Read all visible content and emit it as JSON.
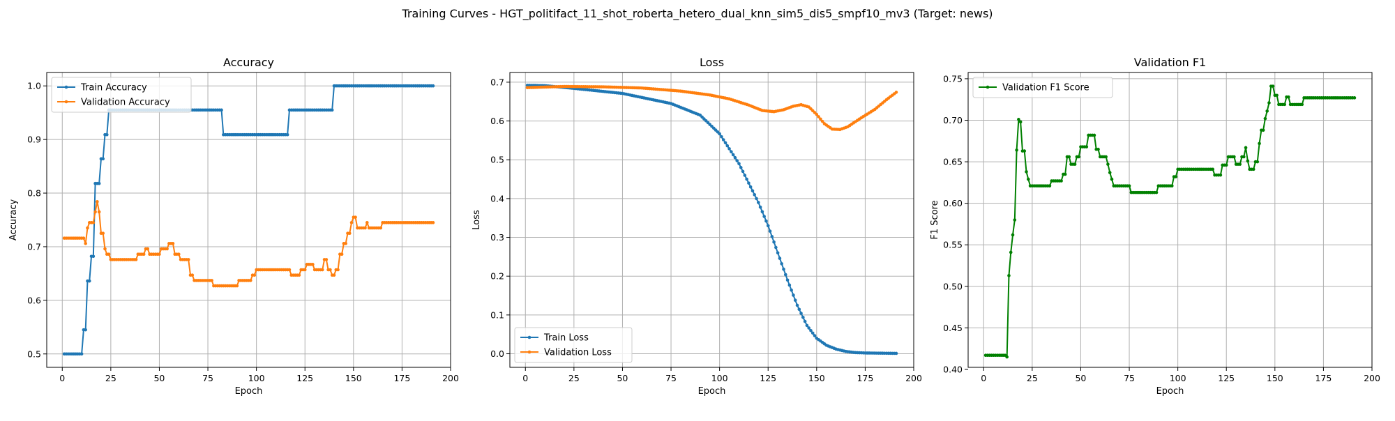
{
  "figure": {
    "suptitle": "Training Curves - HGT_politifact_11_shot_roberta_hetero_dual_knn_sim5_dis5_smpf10_mv3 (Target: news)"
  },
  "colors": {
    "train": "#1f77b4",
    "validation": "#ff7f0e",
    "f1": "#008000",
    "grid": "#b0b0b0"
  },
  "chart_data": [
    {
      "type": "line",
      "title": "Accuracy",
      "xlabel": "Epoch",
      "ylabel": "Accuracy",
      "xlim": [
        -8,
        200
      ],
      "ylim": [
        0.475,
        1.025
      ],
      "xticks": [
        0,
        25,
        50,
        75,
        100,
        125,
        150,
        175,
        200
      ],
      "yticks": [
        0.5,
        0.6,
        0.7,
        0.8,
        0.9,
        1.0
      ],
      "ytick_labels": [
        "0.5",
        "0.6",
        "0.7",
        "0.8",
        "0.9",
        "1.0"
      ],
      "grid": true,
      "legend": "upper-left",
      "x_range": [
        1,
        191
      ],
      "series": [
        {
          "name": "Train Accuracy",
          "color_key": "train",
          "breakpoints": [
            [
              1,
              0.5
            ],
            [
              10,
              0.5
            ],
            [
              11,
              0.545
            ],
            [
              13,
              0.636
            ],
            [
              15,
              0.682
            ],
            [
              17,
              0.818
            ],
            [
              20,
              0.864
            ],
            [
              22,
              0.909
            ],
            [
              24,
              0.955
            ],
            [
              82,
              0.955
            ],
            [
              83,
              0.909
            ],
            [
              116,
              0.909
            ],
            [
              117,
              0.955
            ],
            [
              139,
              0.955
            ],
            [
              140,
              1.0
            ],
            [
              191,
              1.0
            ]
          ],
          "step": true
        },
        {
          "name": "Validation Accuracy",
          "color_key": "validation",
          "breakpoints": [
            [
              1,
              0.716
            ],
            [
              11,
              0.716
            ],
            [
              12,
              0.706
            ],
            [
              13,
              0.735
            ],
            [
              14,
              0.745
            ],
            [
              17,
              0.765
            ],
            [
              18,
              0.784
            ],
            [
              19,
              0.765
            ],
            [
              20,
              0.725
            ],
            [
              22,
              0.696
            ],
            [
              23,
              0.686
            ],
            [
              25,
              0.676
            ],
            [
              38,
              0.676
            ],
            [
              39,
              0.686
            ],
            [
              43,
              0.696
            ],
            [
              45,
              0.686
            ],
            [
              51,
              0.696
            ],
            [
              55,
              0.706
            ],
            [
              58,
              0.686
            ],
            [
              61,
              0.676
            ],
            [
              66,
              0.647
            ],
            [
              68,
              0.637
            ],
            [
              77,
              0.637
            ],
            [
              78,
              0.627
            ],
            [
              90,
              0.627
            ],
            [
              91,
              0.637
            ],
            [
              98,
              0.647
            ],
            [
              100,
              0.657
            ],
            [
              117,
              0.657
            ],
            [
              118,
              0.647
            ],
            [
              123,
              0.657
            ],
            [
              126,
              0.667
            ],
            [
              130,
              0.657
            ],
            [
              135,
              0.676
            ],
            [
              137,
              0.657
            ],
            [
              139,
              0.647
            ],
            [
              141,
              0.657
            ],
            [
              143,
              0.686
            ],
            [
              145,
              0.706
            ],
            [
              147,
              0.725
            ],
            [
              149,
              0.745
            ],
            [
              150,
              0.755
            ],
            [
              152,
              0.735
            ],
            [
              157,
              0.745
            ],
            [
              158,
              0.735
            ],
            [
              165,
              0.745
            ],
            [
              191,
              0.745
            ]
          ],
          "step": true
        }
      ]
    },
    {
      "type": "line",
      "title": "Loss",
      "xlabel": "Epoch",
      "ylabel": "Loss",
      "xlim": [
        -8,
        200
      ],
      "ylim": [
        -0.035,
        0.725
      ],
      "xticks": [
        0,
        25,
        50,
        75,
        100,
        125,
        150,
        175,
        200
      ],
      "yticks": [
        0.0,
        0.1,
        0.2,
        0.3,
        0.4,
        0.5,
        0.6,
        0.7
      ],
      "ytick_labels": [
        "0.0",
        "0.1",
        "0.2",
        "0.3",
        "0.4",
        "0.5",
        "0.6",
        "0.7"
      ],
      "grid": true,
      "legend": "lower-left",
      "x_range": [
        1,
        191
      ],
      "series": [
        {
          "name": "Train Loss",
          "color_key": "train",
          "breakpoints": [
            [
              1,
              0.692
            ],
            [
              10,
              0.691
            ],
            [
              25,
              0.684
            ],
            [
              50,
              0.671
            ],
            [
              75,
              0.645
            ],
            [
              90,
              0.615
            ],
            [
              100,
              0.567
            ],
            [
              110,
              0.49
            ],
            [
              115,
              0.44
            ],
            [
              120,
              0.39
            ],
            [
              125,
              0.33
            ],
            [
              130,
              0.26
            ],
            [
              135,
              0.19
            ],
            [
              140,
              0.125
            ],
            [
              145,
              0.073
            ],
            [
              150,
              0.04
            ],
            [
              155,
              0.022
            ],
            [
              160,
              0.012
            ],
            [
              165,
              0.006
            ],
            [
              170,
              0.003
            ],
            [
              175,
              0.002
            ],
            [
              191,
              0.001
            ]
          ],
          "step": false
        },
        {
          "name": "Validation Loss",
          "color_key": "validation",
          "breakpoints": [
            [
              1,
              0.686
            ],
            [
              20,
              0.689
            ],
            [
              40,
              0.688
            ],
            [
              60,
              0.685
            ],
            [
              80,
              0.677
            ],
            [
              95,
              0.667
            ],
            [
              105,
              0.657
            ],
            [
              115,
              0.641
            ],
            [
              122,
              0.627
            ],
            [
              128,
              0.624
            ],
            [
              133,
              0.629
            ],
            [
              138,
              0.638
            ],
            [
              142,
              0.642
            ],
            [
              146,
              0.636
            ],
            [
              150,
              0.617
            ],
            [
              154,
              0.593
            ],
            [
              158,
              0.579
            ],
            [
              162,
              0.578
            ],
            [
              166,
              0.585
            ],
            [
              172,
              0.605
            ],
            [
              180,
              0.63
            ],
            [
              186,
              0.655
            ],
            [
              191,
              0.674
            ]
          ],
          "step": false
        }
      ]
    },
    {
      "type": "line",
      "title": "Validation F1",
      "xlabel": "Epoch",
      "ylabel": "F1 Score",
      "xlim": [
        -8,
        200
      ],
      "ylim": [
        0.4025,
        0.7575
      ],
      "xticks": [
        0,
        25,
        50,
        75,
        100,
        125,
        150,
        175,
        200
      ],
      "yticks": [
        0.4,
        0.45,
        0.5,
        0.55,
        0.6,
        0.65,
        0.7,
        0.75
      ],
      "ytick_labels": [
        "0.40",
        "0.45",
        "0.50",
        "0.55",
        "0.60",
        "0.65",
        "0.70",
        "0.75"
      ],
      "grid": true,
      "legend": "upper-left",
      "x_range": [
        1,
        191
      ],
      "series": [
        {
          "name": "Validation F1 Score",
          "color_key": "f1",
          "breakpoints": [
            [
              1,
              0.417
            ],
            [
              11,
              0.417
            ],
            [
              12,
              0.415
            ],
            [
              13,
              0.513
            ],
            [
              14,
              0.541
            ],
            [
              15,
              0.562
            ],
            [
              16,
              0.58
            ],
            [
              17,
              0.664
            ],
            [
              18,
              0.701
            ],
            [
              19,
              0.698
            ],
            [
              20,
              0.663
            ],
            [
              22,
              0.638
            ],
            [
              23,
              0.629
            ],
            [
              24,
              0.621
            ],
            [
              34,
              0.621
            ],
            [
              35,
              0.627
            ],
            [
              41,
              0.635
            ],
            [
              43,
              0.656
            ],
            [
              45,
              0.647
            ],
            [
              48,
              0.656
            ],
            [
              50,
              0.668
            ],
            [
              54,
              0.682
            ],
            [
              58,
              0.665
            ],
            [
              60,
              0.656
            ],
            [
              64,
              0.647
            ],
            [
              65,
              0.637
            ],
            [
              66,
              0.629
            ],
            [
              67,
              0.621
            ],
            [
              75,
              0.621
            ],
            [
              76,
              0.613
            ],
            [
              89,
              0.613
            ],
            [
              90,
              0.621
            ],
            [
              98,
              0.632
            ],
            [
              100,
              0.641
            ],
            [
              118,
              0.641
            ],
            [
              119,
              0.634
            ],
            [
              123,
              0.646
            ],
            [
              126,
              0.656
            ],
            [
              130,
              0.647
            ],
            [
              133,
              0.656
            ],
            [
              135,
              0.667
            ],
            [
              136,
              0.651
            ],
            [
              137,
              0.641
            ],
            [
              140,
              0.65
            ],
            [
              142,
              0.672
            ],
            [
              143,
              0.688
            ],
            [
              145,
              0.702
            ],
            [
              146,
              0.711
            ],
            [
              147,
              0.721
            ],
            [
              148,
              0.741
            ],
            [
              150,
              0.73
            ],
            [
              152,
              0.719
            ],
            [
              156,
              0.728
            ],
            [
              158,
              0.719
            ],
            [
              165,
              0.727
            ],
            [
              191,
              0.727
            ]
          ],
          "step": true
        }
      ]
    }
  ]
}
